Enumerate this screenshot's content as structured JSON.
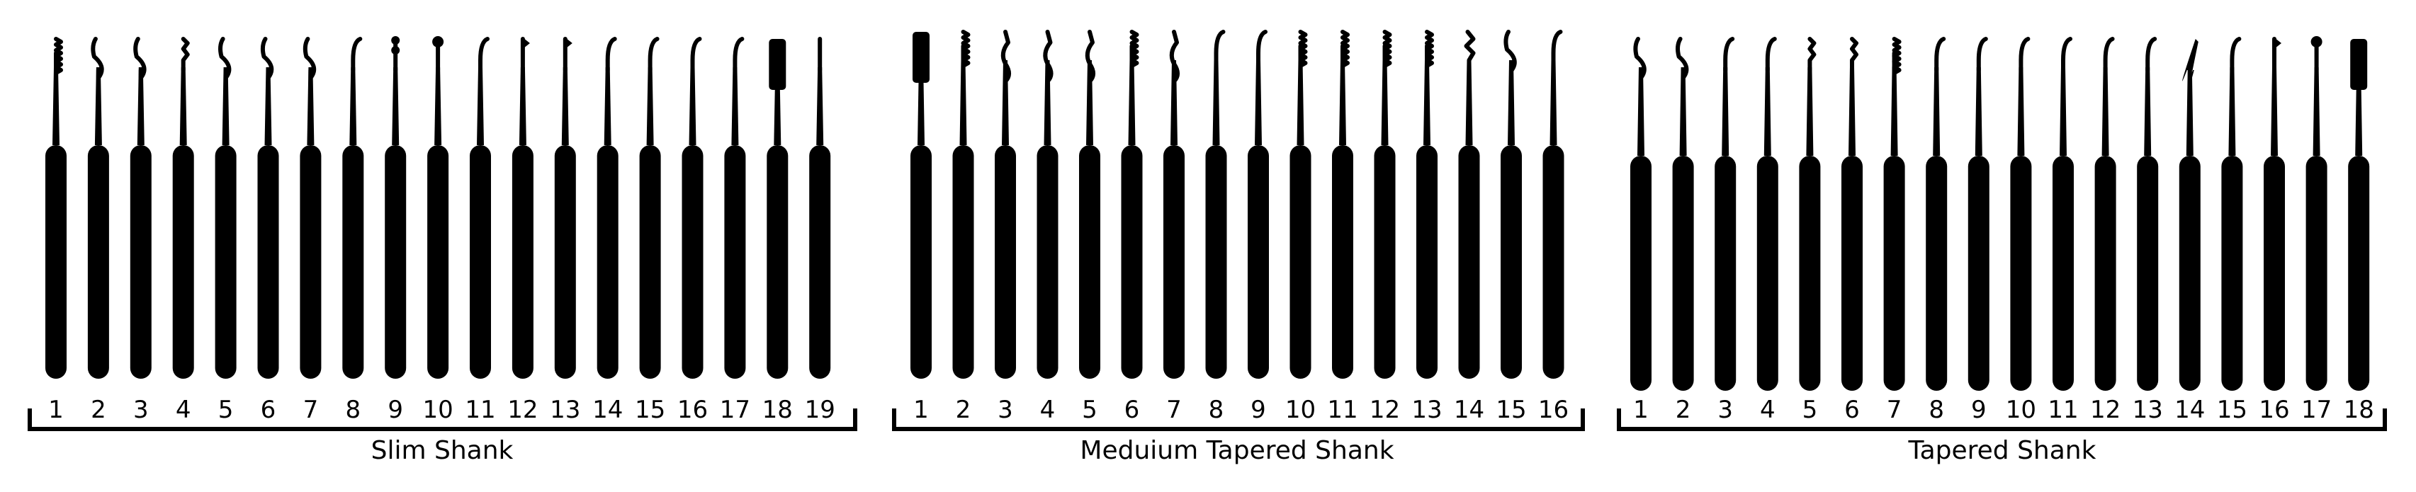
{
  "groups": [
    {
      "title": "Slim Shank",
      "labels": [
        "1",
        "2",
        "3",
        "4",
        "5",
        "6",
        "7",
        "8",
        "9",
        "10",
        "11",
        "12",
        "13",
        "14",
        "15",
        "16",
        "17",
        "18",
        "19"
      ],
      "tips": [
        "serrated",
        "wave",
        "wave",
        "ridge",
        "wave",
        "wave",
        "wave",
        "hook",
        "ball-double",
        "ball",
        "hook",
        "flag",
        "flag",
        "hook",
        "hook",
        "hook",
        "hook",
        "paddle",
        "straight"
      ]
    },
    {
      "title": "Meduium Tapered Shank",
      "labels": [
        "1",
        "2",
        "3",
        "4",
        "5",
        "6",
        "7",
        "8",
        "9",
        "10",
        "11",
        "12",
        "13",
        "14",
        "15",
        "16"
      ],
      "tips": [
        "paddle",
        "serrated",
        "snake",
        "snake",
        "snake",
        "serrated",
        "snake",
        "hook",
        "hook",
        "serrated",
        "serrated",
        "serrated",
        "serrated",
        "bogota",
        "wave",
        "hook"
      ]
    },
    {
      "title": "Tapered Shank",
      "labels": [
        "1",
        "2",
        "3",
        "4",
        "5",
        "6",
        "7",
        "8",
        "9",
        "10",
        "11",
        "12",
        "13",
        "14",
        "15",
        "16",
        "17",
        "18"
      ],
      "tips": [
        "wave",
        "wave",
        "hook",
        "hook",
        "ridge",
        "ridge",
        "serrated",
        "hook",
        "hook",
        "hook",
        "hook",
        "hook",
        "hook",
        "deep-hook",
        "hook",
        "flag",
        "ball",
        "paddle"
      ]
    }
  ]
}
